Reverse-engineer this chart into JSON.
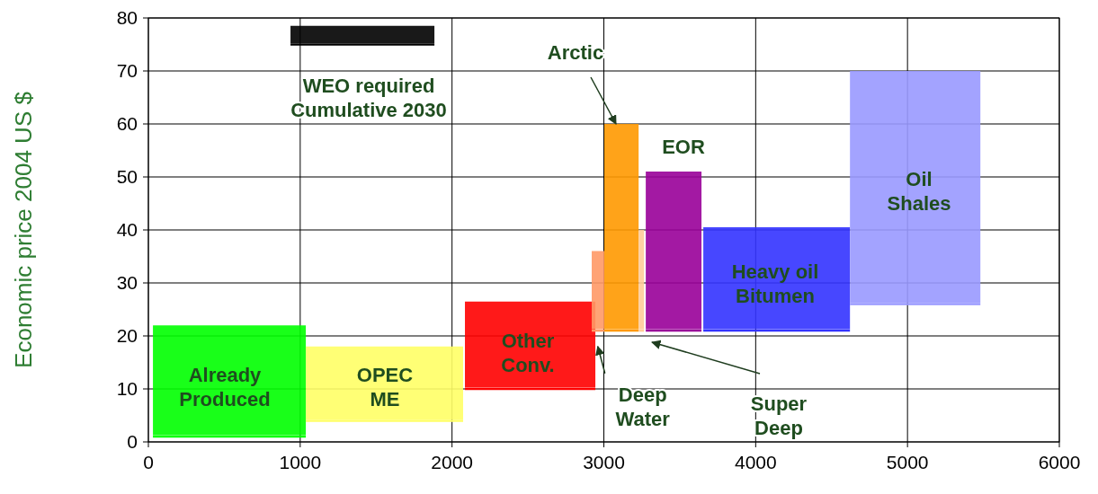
{
  "chart_data": {
    "type": "line",
    "ylabel": "Economic price 2004 US $",
    "xlim": [
      0,
      6000
    ],
    "xticks": [
      0,
      1000,
      2000,
      3000,
      4000,
      5000,
      6000
    ],
    "ylim": [
      0,
      80
    ],
    "yticks": [
      0,
      10,
      20,
      30,
      40,
      50,
      60,
      70,
      80
    ],
    "grid": true,
    "series": [
      {
        "color": "#00ff00",
        "x": [
          30,
          1037
        ],
        "values": [
          1,
          1
        ],
        "lower": [
          1,
          1
        ],
        "upper": [
          22,
          22
        ]
      },
      {
        "color": "#ffff66",
        "x": [
          1037,
          2073
        ],
        "values": [
          4,
          4
        ],
        "lower": [
          4,
          4
        ],
        "upper": [
          18,
          18
        ]
      },
      {
        "color": "#ff0000",
        "x": [
          2085,
          2944
        ],
        "values": [
          10,
          10
        ],
        "lower": [
          10,
          10
        ],
        "upper": [
          26.5,
          26.5
        ]
      },
      {
        "color": "#ff9966",
        "x": [
          2920,
          3003
        ],
        "values": [
          21,
          21
        ],
        "lower": [
          21,
          21
        ],
        "upper": [
          36,
          36
        ]
      },
      {
        "color": "#ff9900",
        "x": [
          3003,
          3229
        ],
        "values": [
          21,
          21
        ],
        "lower": [
          21,
          21
        ],
        "upper": [
          60,
          60
        ]
      },
      {
        "color": "#ffcc99",
        "x": [
          3229,
          3265
        ],
        "values": [
          21,
          21
        ],
        "lower": [
          21,
          21
        ],
        "upper": [
          40,
          40
        ]
      },
      {
        "color": "#990099",
        "x": [
          3276,
          3643
        ],
        "values": [
          21,
          21
        ],
        "lower": [
          21,
          21
        ],
        "upper": [
          51,
          51
        ]
      },
      {
        "color": "#3333ff",
        "x": [
          3655,
          4621
        ],
        "values": [
          21,
          21
        ],
        "lower": [
          21,
          21
        ],
        "upper": [
          40.5,
          40.5
        ]
      },
      {
        "color": "#9999ff",
        "x": [
          4621,
          5480
        ],
        "values": [
          26,
          26
        ],
        "lower": [
          26,
          26
        ],
        "upper": [
          70,
          70
        ]
      },
      {
        "color": "#000000",
        "x": [
          936,
          1884
        ],
        "values": [
          75,
          75
        ],
        "lower": [
          75,
          75
        ],
        "upper": [
          78.5,
          78.5
        ]
      }
    ],
    "annotations": [
      "Already\nProduced",
      "OPEC\nME",
      "Other\nConv.",
      "Heavy oil\nBitumen",
      "Oil\nShales",
      "EOR",
      "WEO required\nCumulative 2030",
      {
        "text": "Arctic",
        "x": 3080,
        "y": 60
      },
      {
        "text": "Deep\nWater",
        "x": 2960,
        "y": 18
      },
      "Super\nDeep"
    ]
  }
}
